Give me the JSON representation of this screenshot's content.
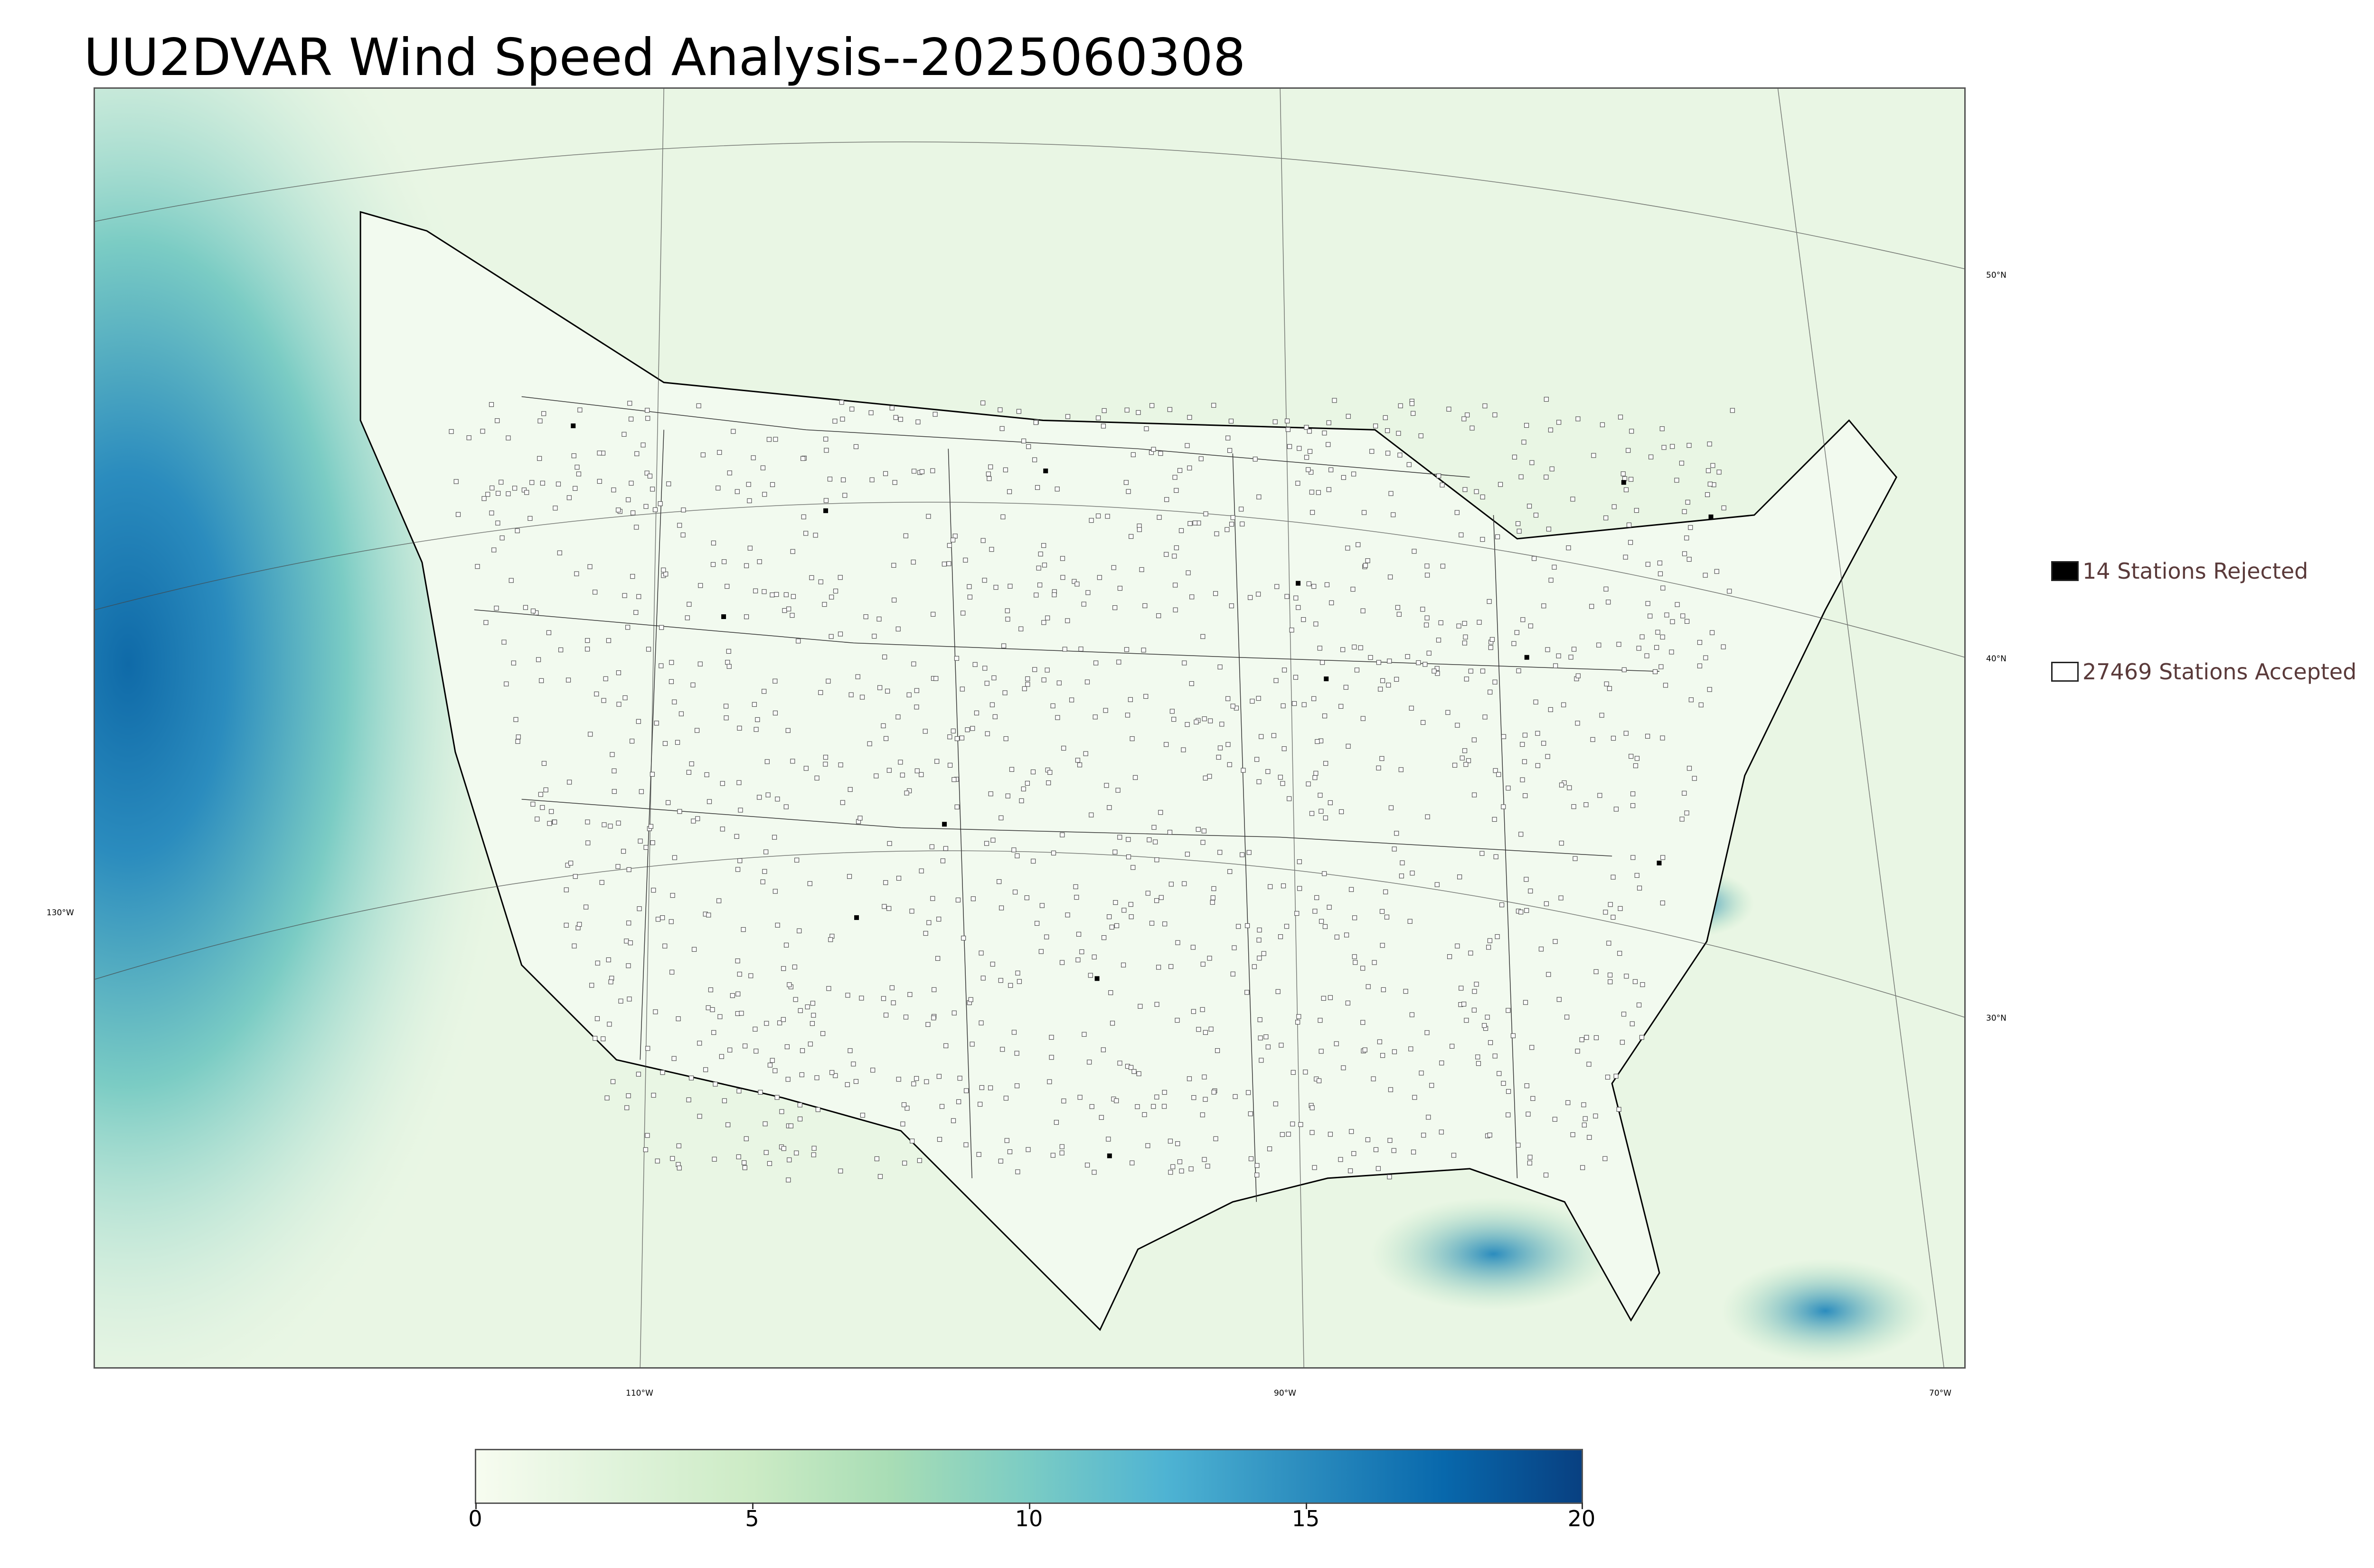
{
  "title": "UU2DVAR Wind Speed Analysis--2025060308",
  "map": {
    "projection": "lambert-conformal",
    "region": "CONUS",
    "field": "wind speed",
    "base_color": "#eef8ea",
    "land_color": "#f2faef",
    "ocean_gradient_color": "#1f7fbf",
    "latitude_labels": [
      "50°N",
      "40°N",
      "30°N"
    ],
    "longitude_labels": [
      "130°W",
      "110°W",
      "90°W",
      "70°W"
    ]
  },
  "legend": {
    "rejected": {
      "label": "14 Stations Rejected",
      "color": "#000000"
    },
    "accepted": {
      "label": "27469 Stations Accepted",
      "color": "#ffffff"
    }
  },
  "colorbar": {
    "min": 0,
    "max": 20,
    "tick_labels": [
      "0",
      "5",
      "10",
      "15",
      "20"
    ],
    "colors": [
      "#f7fcf0",
      "#e0f3db",
      "#ccebc5",
      "#a8ddb5",
      "#7bccc4",
      "#4eb3d3",
      "#2b8cbe",
      "#0868ac",
      "#084081"
    ]
  }
}
